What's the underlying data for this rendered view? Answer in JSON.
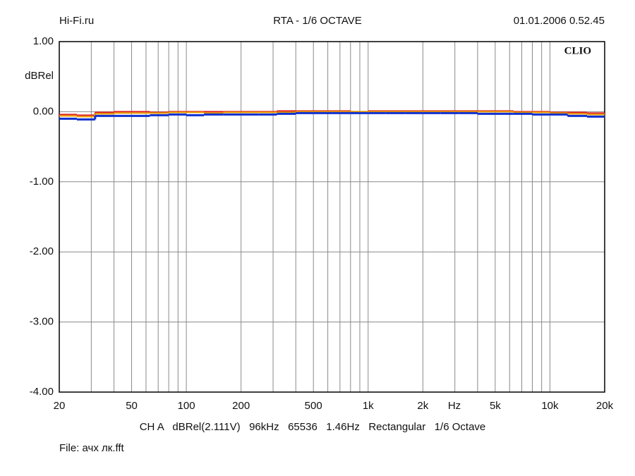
{
  "chart_data": {
    "type": "line",
    "step": true,
    "xscale": "log",
    "header_left": "Hi-Fi.ru",
    "title": "RTA - 1/6 OCTAVE",
    "header_right": "01.01.2006 0.52.45",
    "brand": "CLIO",
    "ylabel": "dBRel",
    "xlabel": "Hz",
    "footer": "CH A   dBRel(2.111V)   96kHz   65536   1.46Hz   Rectangular   1/6 Octave",
    "file": "File: ачх лк.fft",
    "x": [
      20,
      25,
      31.5,
      40,
      50,
      63,
      80,
      100,
      125,
      160,
      200,
      250,
      315,
      400,
      500,
      630,
      800,
      1000,
      1250,
      1600,
      2000,
      2500,
      3150,
      4000,
      5000,
      6300,
      8000,
      10000,
      12500,
      16000
    ],
    "series": [
      {
        "name": "red",
        "color": "#e02020",
        "width": 2,
        "values": [
          -0.04,
          -0.05,
          -0.01,
          0.0,
          0.0,
          -0.01,
          0.0,
          0.0,
          0.0,
          0.0,
          0.0,
          0.0,
          0.01,
          0.01,
          0.01,
          0.01,
          0.0,
          0.01,
          0.01,
          0.01,
          0.01,
          0.01,
          0.01,
          0.01,
          0.01,
          0.0,
          0.0,
          -0.01,
          -0.01,
          -0.02
        ]
      },
      {
        "name": "orange",
        "color": "#e8a000",
        "width": 2,
        "values": [
          -0.06,
          -0.07,
          -0.03,
          -0.02,
          -0.02,
          -0.02,
          -0.01,
          -0.01,
          -0.02,
          -0.01,
          -0.01,
          -0.01,
          -0.01,
          0.0,
          0.0,
          0.0,
          0.0,
          0.0,
          0.0,
          0.0,
          0.0,
          0.0,
          0.0,
          0.0,
          0.0,
          -0.01,
          -0.01,
          -0.02,
          -0.03,
          -0.04
        ]
      },
      {
        "name": "blue",
        "color": "#1030d0",
        "width": 3,
        "values": [
          -0.1,
          -0.11,
          -0.06,
          -0.06,
          -0.06,
          -0.05,
          -0.04,
          -0.05,
          -0.04,
          -0.04,
          -0.04,
          -0.04,
          -0.03,
          -0.02,
          -0.02,
          -0.02,
          -0.02,
          -0.02,
          -0.02,
          -0.02,
          -0.02,
          -0.02,
          -0.02,
          -0.03,
          -0.03,
          -0.03,
          -0.04,
          -0.04,
          -0.06,
          -0.07
        ]
      }
    ],
    "xlim": [
      20,
      20000
    ],
    "xticks": [
      20,
      50,
      100,
      200,
      500,
      {
        "value": 1000,
        "label": "1k"
      },
      {
        "value": 2000,
        "label": "2k"
      },
      {
        "value": 5000,
        "label": "5k"
      },
      {
        "value": 10000,
        "label": "10k"
      },
      {
        "value": 20000,
        "label": "20k"
      }
    ],
    "x_minor_ticks": [
      30,
      40,
      60,
      70,
      80,
      90,
      300,
      400,
      600,
      700,
      800,
      900,
      3000,
      4000,
      6000,
      7000,
      8000,
      9000
    ],
    "ylim": [
      -4,
      1
    ],
    "yticks": [
      {
        "value": 1,
        "label": "1.00"
      },
      {
        "value": 0,
        "label": "0.00"
      },
      {
        "value": -1,
        "label": "-1.00"
      },
      {
        "value": -2,
        "label": "-2.00"
      },
      {
        "value": -3,
        "label": "-3.00"
      },
      {
        "value": -4,
        "label": "-4.00"
      }
    ],
    "grid": true
  }
}
